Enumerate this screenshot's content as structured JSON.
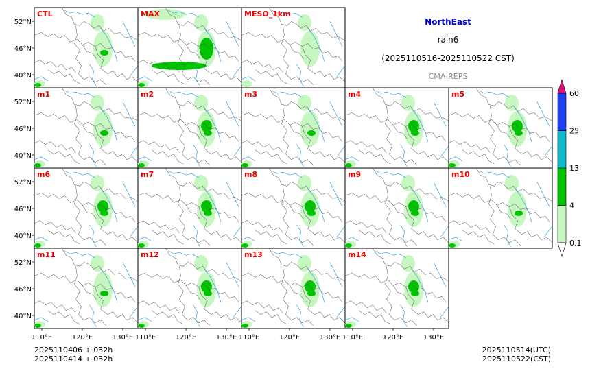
{
  "title": {
    "region": "NorthEast",
    "variable": "rain6",
    "period": "(2025110516-2025110522 CST)",
    "source": "CMA-REPS"
  },
  "panels": [
    {
      "id": "CTL",
      "intensity": 1
    },
    {
      "id": "MAX",
      "intensity": 3
    },
    {
      "id": "MESO_1km",
      "intensity": 0
    },
    {
      "id": "m1",
      "intensity": 1
    },
    {
      "id": "m2",
      "intensity": 2
    },
    {
      "id": "m3",
      "intensity": 1
    },
    {
      "id": "m4",
      "intensity": 2
    },
    {
      "id": "m5",
      "intensity": 2
    },
    {
      "id": "m6",
      "intensity": 2
    },
    {
      "id": "m7",
      "intensity": 2
    },
    {
      "id": "m8",
      "intensity": 2
    },
    {
      "id": "m9",
      "intensity": 2
    },
    {
      "id": "m10",
      "intensity": 1
    },
    {
      "id": "m11",
      "intensity": 1
    },
    {
      "id": "m12",
      "intensity": 2
    },
    {
      "id": "m13",
      "intensity": 2
    },
    {
      "id": "m14",
      "intensity": 2
    }
  ],
  "lat_ticks": [
    "52°N",
    "46°N",
    "40°N"
  ],
  "lon_ticks": [
    "110°E",
    "120°E",
    "130°E"
  ],
  "colorbar": {
    "levels": [
      "0.1",
      "4",
      "13",
      "25",
      "60"
    ],
    "colors": [
      "#ffffff",
      "#c6f7c0",
      "#00c400",
      "#10b8c8",
      "#2040f0",
      "#e0107a"
    ]
  },
  "footer": {
    "init_utc": "2025110406  +  032h",
    "init_cst": "2025110414  +  032h",
    "valid_utc": "2025110514(UTC)",
    "valid_cst": "2025110522(CST)"
  }
}
